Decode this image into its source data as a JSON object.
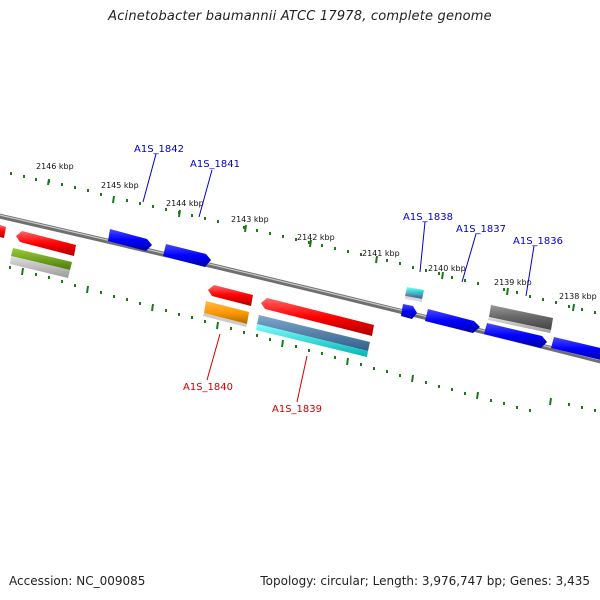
{
  "title": "Acinetobacter baumannii ATCC 17978, complete genome",
  "footer": {
    "accession": "Accession: NC_009085",
    "summary": "Topology: circular; Length: 3,976,747 bp; Genes: 3,435"
  },
  "colors": {
    "backbone": "#7f7f7f",
    "tick": "#1a7a1a",
    "label_forward": "#0000cc",
    "label_reverse": "#cc0000"
  },
  "kbp_labels": [
    "2146 kbp",
    "2145 kbp",
    "2144 kbp",
    "2143 kbp",
    "2142 kbp",
    "2141 kbp",
    "2140 kbp",
    "2139 kbp",
    "2138 kbp"
  ],
  "genes_labeled": [
    "A1S_1842",
    "A1S_1841",
    "A1S_1838",
    "A1S_1837",
    "A1S_1836",
    "A1S_1840",
    "A1S_1839"
  ]
}
